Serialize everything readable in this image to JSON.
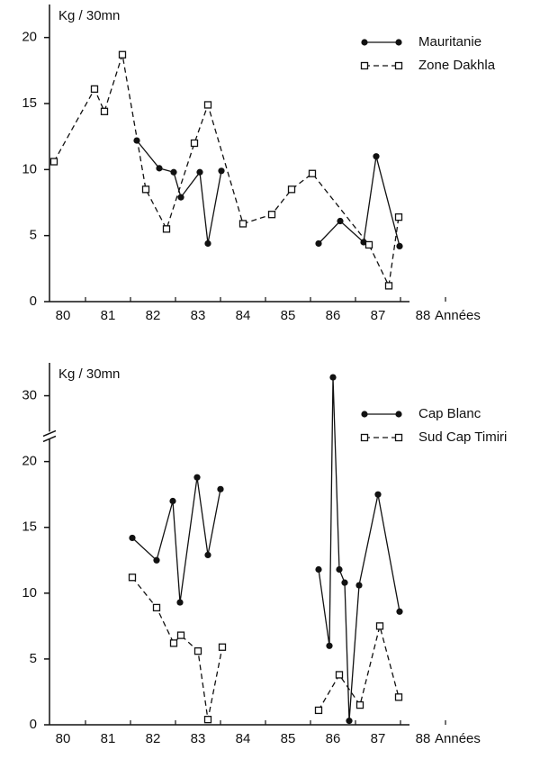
{
  "chart_data": [
    {
      "type": "line",
      "y_label": "Kg / 30mn",
      "x_label": "Années",
      "xlim": [
        79.7,
        87.7
      ],
      "xticks": [
        80,
        81,
        82,
        83,
        84,
        85,
        86,
        87,
        88
      ],
      "ylim": [
        0,
        22.5
      ],
      "yticks": [
        0,
        5,
        10,
        15,
        20
      ],
      "legend": "upper right",
      "series": [
        {
          "name": "Mauritanie",
          "color": "#111111",
          "marker": "filled-circle",
          "dashed": false,
          "x": [
            81.64,
            82.14,
            82.46,
            82.62,
            83.04,
            83.22,
            83.52,
            null,
            85.68,
            86.16,
            86.68,
            86.96,
            87.48
          ],
          "values": [
            12.2,
            10.1,
            9.8,
            7.9,
            9.8,
            4.4,
            9.9,
            null,
            4.4,
            6.1,
            4.5,
            11.0,
            4.2
          ]
        },
        {
          "name": "Zone Dakhla",
          "color": "#111111",
          "marker": "open-square",
          "dashed": true,
          "x": [
            79.8,
            80.7,
            80.92,
            81.32,
            81.84,
            82.3,
            82.92,
            83.22,
            84.0,
            84.64,
            85.08,
            85.54,
            86.8,
            87.24,
            87.46
          ],
          "values": [
            10.6,
            16.1,
            14.4,
            18.7,
            8.5,
            5.5,
            12.0,
            14.9,
            5.9,
            6.6,
            8.5,
            9.7,
            4.3,
            1.2,
            6.4
          ]
        }
      ]
    },
    {
      "type": "line",
      "y_label": "Kg / 30mn",
      "x_label": "Années",
      "xlim": [
        79.7,
        87.7
      ],
      "xticks": [
        80,
        81,
        82,
        83,
        84,
        85,
        86,
        87,
        88
      ],
      "ylim": [
        0,
        32.5
      ],
      "y_break": [
        22,
        27
      ],
      "yticks": [
        0,
        5,
        10,
        15,
        20,
        30
      ],
      "legend": "upper right",
      "series": [
        {
          "name": "Cap Blanc",
          "color": "#111111",
          "marker": "filled-circle",
          "dashed": false,
          "x": [
            81.54,
            82.08,
            82.44,
            82.6,
            82.98,
            83.22,
            83.5,
            null,
            85.68,
            85.92,
            86.0,
            86.14,
            86.26,
            86.36,
            86.58,
            87.0,
            87.48
          ],
          "values": [
            14.2,
            12.5,
            17.0,
            9.3,
            18.8,
            12.9,
            17.9,
            null,
            11.8,
            6.0,
            31.4,
            11.8,
            10.8,
            0.3,
            10.6,
            17.5,
            8.6
          ]
        },
        {
          "name": "Sud Cap Timiri",
          "color": "#111111",
          "marker": "open-square",
          "dashed": true,
          "x": [
            81.54,
            82.08,
            82.46,
            82.62,
            83.0,
            83.22,
            83.54,
            null,
            85.68,
            86.14,
            86.6,
            87.04,
            87.46
          ],
          "values": [
            11.2,
            8.9,
            6.2,
            6.8,
            5.6,
            0.4,
            5.9,
            null,
            1.1,
            3.8,
            1.5,
            7.5,
            2.1
          ]
        }
      ]
    }
  ]
}
